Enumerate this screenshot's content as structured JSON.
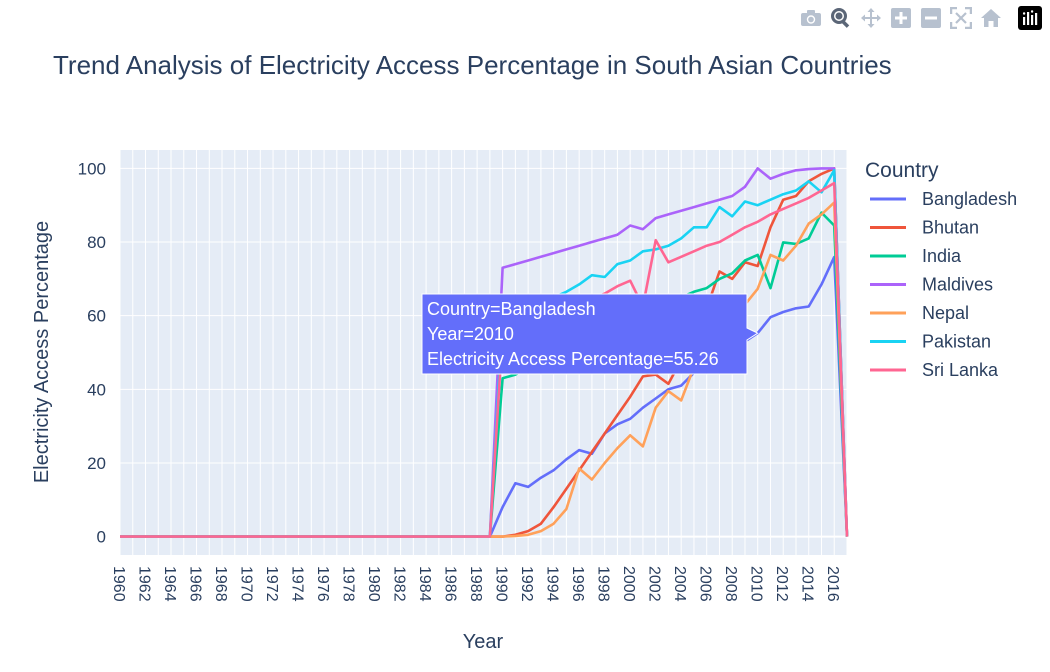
{
  "chart_data": {
    "type": "line",
    "title": "Trend Analysis of Electricity Access Percentage in South Asian Countries",
    "xlabel": "Year",
    "ylabel": "Electricity Access Percentage",
    "legend_title": "Country",
    "legend_position": "right",
    "grid": true,
    "xlim": [
      1960,
      2017
    ],
    "ylim": [
      -5,
      105
    ],
    "x_ticks": [
      1960,
      1962,
      1964,
      1966,
      1968,
      1970,
      1972,
      1974,
      1976,
      1978,
      1980,
      1982,
      1984,
      1986,
      1988,
      1990,
      1992,
      1994,
      1996,
      1998,
      2000,
      2002,
      2004,
      2006,
      2008,
      2010,
      2012,
      2014,
      2016
    ],
    "y_ticks": [
      0,
      20,
      40,
      60,
      80,
      100
    ],
    "series": [
      {
        "name": "Bangladesh",
        "color": "#636efa",
        "points": [
          [
            1960,
            0
          ],
          [
            1989,
            0
          ],
          [
            1990,
            8
          ],
          [
            1991,
            14.5
          ],
          [
            1992,
            13.5
          ],
          [
            1993,
            16
          ],
          [
            1994,
            18
          ],
          [
            1995,
            21
          ],
          [
            1996,
            23.5
          ],
          [
            1997,
            22.5
          ],
          [
            1998,
            28
          ],
          [
            1999,
            30.5
          ],
          [
            2000,
            32
          ],
          [
            2001,
            35
          ],
          [
            2002,
            37.5
          ],
          [
            2003,
            40
          ],
          [
            2004,
            41
          ],
          [
            2005,
            44.5
          ],
          [
            2006,
            45
          ],
          [
            2007,
            47
          ],
          [
            2008,
            50
          ],
          [
            2009,
            53
          ],
          [
            2010,
            55.26
          ],
          [
            2011,
            59.6
          ],
          [
            2012,
            61
          ],
          [
            2013,
            62
          ],
          [
            2014,
            62.5
          ],
          [
            2015,
            68.5
          ],
          [
            2016,
            75.9
          ],
          [
            2017,
            0
          ]
        ]
      },
      {
        "name": "Bhutan",
        "color": "#EF553B",
        "points": [
          [
            1960,
            0
          ],
          [
            1990,
            0
          ],
          [
            1991,
            0.5
          ],
          [
            1992,
            1.5
          ],
          [
            1993,
            3.5
          ],
          [
            1994,
            8
          ],
          [
            1995,
            13
          ],
          [
            1996,
            18
          ],
          [
            1997,
            23
          ],
          [
            1998,
            28
          ],
          [
            1999,
            33
          ],
          [
            2000,
            38
          ],
          [
            2001,
            43.5
          ],
          [
            2002,
            44
          ],
          [
            2003,
            41.5
          ],
          [
            2004,
            48
          ],
          [
            2005,
            55
          ],
          [
            2006,
            62
          ],
          [
            2007,
            72
          ],
          [
            2008,
            70
          ],
          [
            2009,
            74.5
          ],
          [
            2010,
            73.5
          ],
          [
            2011,
            84
          ],
          [
            2012,
            91.5
          ],
          [
            2013,
            92.5
          ],
          [
            2014,
            96.5
          ],
          [
            2015,
            98.5
          ],
          [
            2016,
            100
          ],
          [
            2017,
            0
          ]
        ]
      },
      {
        "name": "India",
        "color": "#00cc96",
        "points": [
          [
            1960,
            0
          ],
          [
            1989,
            0
          ],
          [
            1990,
            43
          ],
          [
            1991,
            44
          ],
          [
            1992,
            46
          ],
          [
            1993,
            48
          ],
          [
            1994,
            50
          ],
          [
            1995,
            52
          ],
          [
            1996,
            54
          ],
          [
            1997,
            56
          ],
          [
            1998,
            58
          ],
          [
            1999,
            60
          ],
          [
            2000,
            60.5
          ],
          [
            2001,
            62
          ],
          [
            2002,
            63
          ],
          [
            2003,
            64.5
          ],
          [
            2004,
            65
          ],
          [
            2005,
            66.5
          ],
          [
            2006,
            67.5
          ],
          [
            2007,
            70
          ],
          [
            2008,
            71.5
          ],
          [
            2009,
            75
          ],
          [
            2010,
            76.5
          ],
          [
            2011,
            67.5
          ],
          [
            2012,
            79.9
          ],
          [
            2013,
            79.5
          ],
          [
            2014,
            81
          ],
          [
            2015,
            88
          ],
          [
            2016,
            84.5
          ],
          [
            2017,
            0
          ]
        ]
      },
      {
        "name": "Maldives",
        "color": "#ab63fa",
        "points": [
          [
            1960,
            0
          ],
          [
            1989,
            0
          ],
          [
            1990,
            73
          ],
          [
            1991,
            74
          ],
          [
            1992,
            75
          ],
          [
            1993,
            76
          ],
          [
            1994,
            77
          ],
          [
            1995,
            78
          ],
          [
            1996,
            79
          ],
          [
            1997,
            80
          ],
          [
            1998,
            81
          ],
          [
            1999,
            82
          ],
          [
            2000,
            84.5
          ],
          [
            2001,
            83.5
          ],
          [
            2002,
            86.5
          ],
          [
            2003,
            87.5
          ],
          [
            2004,
            88.5
          ],
          [
            2005,
            89.5
          ],
          [
            2006,
            90.5
          ],
          [
            2007,
            91.5
          ],
          [
            2008,
            92.5
          ],
          [
            2009,
            95
          ],
          [
            2010,
            100
          ],
          [
            2011,
            97.2
          ],
          [
            2012,
            98.5
          ],
          [
            2013,
            99.5
          ],
          [
            2014,
            99.8
          ],
          [
            2015,
            100
          ],
          [
            2016,
            100
          ],
          [
            2017,
            0
          ]
        ]
      },
      {
        "name": "Nepal",
        "color": "#FFA15A",
        "points": [
          [
            1960,
            0
          ],
          [
            1990,
            0
          ],
          [
            1991,
            0.2
          ],
          [
            1992,
            0.5
          ],
          [
            1993,
            1.5
          ],
          [
            1994,
            3.5
          ],
          [
            1995,
            7.5
          ],
          [
            1996,
            18.5
          ],
          [
            1997,
            15.5
          ],
          [
            1998,
            20
          ],
          [
            1999,
            24
          ],
          [
            2000,
            27.5
          ],
          [
            2001,
            24.5
          ],
          [
            2002,
            35
          ],
          [
            2003,
            39.5
          ],
          [
            2004,
            37
          ],
          [
            2005,
            46
          ],
          [
            2006,
            53
          ],
          [
            2007,
            57
          ],
          [
            2008,
            59
          ],
          [
            2009,
            63
          ],
          [
            2010,
            67.3
          ],
          [
            2011,
            76.5
          ],
          [
            2012,
            75
          ],
          [
            2013,
            79
          ],
          [
            2014,
            85
          ],
          [
            2015,
            87.5
          ],
          [
            2016,
            90.7
          ],
          [
            2017,
            0
          ]
        ]
      },
      {
        "name": "Pakistan",
        "color": "#19d3f3",
        "points": [
          [
            1960,
            0
          ],
          [
            1989,
            0
          ],
          [
            1990,
            59.5
          ],
          [
            1991,
            61
          ],
          [
            1992,
            62
          ],
          [
            1993,
            63.5
          ],
          [
            1994,
            65
          ],
          [
            1995,
            66.5
          ],
          [
            1996,
            68.5
          ],
          [
            1997,
            71
          ],
          [
            1998,
            70.5
          ],
          [
            1999,
            74
          ],
          [
            2000,
            75
          ],
          [
            2001,
            77.5
          ],
          [
            2002,
            78
          ],
          [
            2003,
            79
          ],
          [
            2004,
            81
          ],
          [
            2005,
            84
          ],
          [
            2006,
            84
          ],
          [
            2007,
            89.5
          ],
          [
            2008,
            87
          ],
          [
            2009,
            91
          ],
          [
            2010,
            90
          ],
          [
            2011,
            91.5
          ],
          [
            2012,
            93
          ],
          [
            2013,
            94
          ],
          [
            2014,
            96.5
          ],
          [
            2015,
            93.5
          ],
          [
            2016,
            99.5
          ],
          [
            2017,
            0
          ]
        ]
      },
      {
        "name": "Sri Lanka",
        "color": "#FF6692",
        "points": [
          [
            1960,
            0
          ],
          [
            1989,
            0
          ],
          [
            1990,
            55.5
          ],
          [
            1991,
            57
          ],
          [
            1992,
            58
          ],
          [
            1993,
            59
          ],
          [
            1994,
            60
          ],
          [
            1995,
            61.5
          ],
          [
            1996,
            63
          ],
          [
            1997,
            64.5
          ],
          [
            1998,
            66
          ],
          [
            1999,
            68
          ],
          [
            2000,
            69.5
          ],
          [
            2001,
            62.5
          ],
          [
            2002,
            80.5
          ],
          [
            2003,
            74.5
          ],
          [
            2004,
            76
          ],
          [
            2005,
            77.5
          ],
          [
            2006,
            79
          ],
          [
            2007,
            80
          ],
          [
            2008,
            82
          ],
          [
            2009,
            84
          ],
          [
            2010,
            85.5
          ],
          [
            2011,
            87.5
          ],
          [
            2012,
            89
          ],
          [
            2013,
            90.5
          ],
          [
            2014,
            92
          ],
          [
            2015,
            94
          ],
          [
            2016,
            96
          ],
          [
            2017,
            0
          ]
        ]
      }
    ],
    "hover": {
      "series": "Bangladesh",
      "x": 2010,
      "y": 55.26,
      "lines": [
        "Country=Bangladesh",
        "Year=2010",
        "Electricity Access Percentage=55.26"
      ]
    }
  },
  "modebar": {
    "icons": [
      "camera-icon",
      "zoom-icon",
      "pan-icon",
      "zoom-in-icon",
      "zoom-out-icon",
      "autoscale-icon",
      "reset-axes-icon",
      "plotly-logo-icon"
    ]
  }
}
